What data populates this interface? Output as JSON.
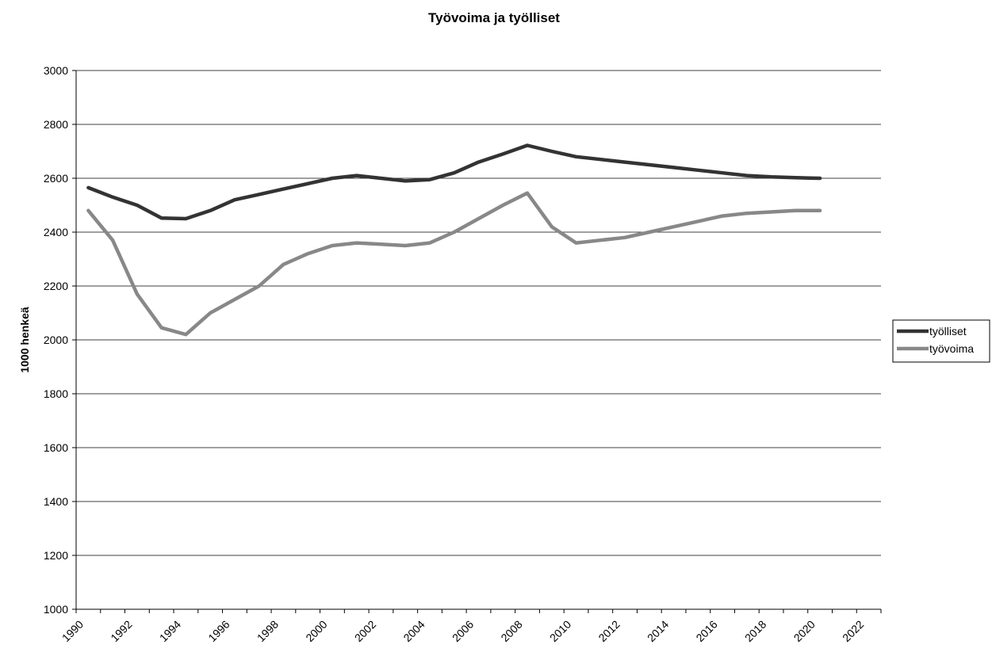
{
  "chart_data": {
    "type": "line",
    "title": "Työvoima ja työlliset",
    "xlabel": "",
    "ylabel": "1000 henkeä",
    "xlim": [
      1990,
      2023
    ],
    "ylim": [
      1000,
      3000
    ],
    "yticks": [
      "1000",
      "1200",
      "1400",
      "1600",
      "1800",
      "2000",
      "2200",
      "2400",
      "2600",
      "2800",
      "3000"
    ],
    "xticks": [
      "1990",
      "1992",
      "1994",
      "1996",
      "1998",
      "2000",
      "2002",
      "2004",
      "2006",
      "2008",
      "2010",
      "2012",
      "2014",
      "2016",
      "2018",
      "2020",
      "2022"
    ],
    "grid": "horizontal",
    "legend_position": "right",
    "series": [
      {
        "name": "työlliset",
        "color": "#333333",
        "x": [
          1990.5,
          1991.5,
          1992.5,
          1993.5,
          1994.5,
          1995.5,
          1996.5,
          1997.5,
          1998.5,
          1999.5,
          2000.5,
          2001.5,
          2002.5,
          2003.5,
          2004.5,
          2005.5,
          2006.5,
          2007.5,
          2008.5,
          2009.5,
          2010.5,
          2011.5,
          2012.5,
          2013.5,
          2014.5,
          2015.5,
          2016.5,
          2017.5,
          2018.5,
          2019.5,
          2020.5
        ],
        "values": [
          2565,
          2530,
          2500,
          2452,
          2450,
          2480,
          2520,
          2540,
          2560,
          2580,
          2600,
          2610,
          2600,
          2590,
          2595,
          2620,
          2660,
          2690,
          2722,
          2700,
          2680,
          2670,
          2660,
          2650,
          2640,
          2630,
          2620,
          2610,
          2605,
          2602,
          2600
        ]
      },
      {
        "name": "työvoima",
        "color": "#888888",
        "x": [
          1990.5,
          1991.5,
          1992.5,
          1993.5,
          1994.5,
          1995.5,
          1996.5,
          1997.5,
          1998.5,
          1999.5,
          2000.5,
          2001.5,
          2002.5,
          2003.5,
          2004.5,
          2005.5,
          2006.5,
          2007.5,
          2008.5,
          2009.5,
          2010.5,
          2011.5,
          2012.5,
          2013.5,
          2014.5,
          2015.5,
          2016.5,
          2017.5,
          2018.5,
          2019.5,
          2020.5
        ],
        "values": [
          2480,
          2370,
          2170,
          2045,
          2020,
          2100,
          2150,
          2200,
          2280,
          2320,
          2350,
          2360,
          2355,
          2350,
          2360,
          2400,
          2450,
          2500,
          2545,
          2420,
          2360,
          2370,
          2380,
          2400,
          2420,
          2440,
          2460,
          2470,
          2475,
          2480,
          2480
        ]
      }
    ]
  }
}
